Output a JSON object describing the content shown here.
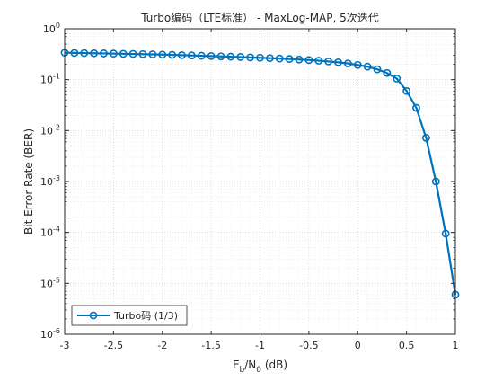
{
  "chart_data": {
    "type": "line",
    "title": "Turbo编码（LTE标准） - MaxLog-MAP, 5次迭代",
    "xlabel": {
      "base": "E",
      "sub1": "b",
      "mid": "/N",
      "sub2": "0",
      "tail": " (dB)"
    },
    "ylabel": "Bit Error Rate (BER)",
    "xscale": "linear",
    "yscale": "log",
    "xlim": [
      -3,
      1
    ],
    "ylim": [
      1e-06,
      1
    ],
    "grid": true,
    "minor_grid": true,
    "legend_location": "bottom-left",
    "x_ticks": [
      "-3",
      "-2.5",
      "-2",
      "-1.5",
      "-1",
      "-0.5",
      "0",
      "0.5",
      "1"
    ],
    "y_ticks": [
      {
        "base": "10",
        "exp": "0"
      },
      {
        "base": "10",
        "exp": "-1"
      },
      {
        "base": "10",
        "exp": "-2"
      },
      {
        "base": "10",
        "exp": "-3"
      },
      {
        "base": "10",
        "exp": "-4"
      },
      {
        "base": "10",
        "exp": "-5"
      },
      {
        "base": "10",
        "exp": "-6"
      }
    ],
    "series": [
      {
        "name": "Turbo码 (1/3)",
        "color": "#0072BD",
        "marker": "circle",
        "x": [
          -3.0,
          -2.9,
          -2.8,
          -2.7,
          -2.6,
          -2.5,
          -2.4,
          -2.3,
          -2.2,
          -2.1,
          -2.0,
          -1.9,
          -1.8,
          -1.7,
          -1.6,
          -1.5,
          -1.4,
          -1.3,
          -1.2,
          -1.1,
          -1.0,
          -0.9,
          -0.8,
          -0.7,
          -0.6,
          -0.5,
          -0.4,
          -0.3,
          -0.2,
          -0.1,
          0.0,
          0.1,
          0.2,
          0.3,
          0.4,
          0.5,
          0.6,
          0.7,
          0.8,
          0.9,
          1.0
        ],
        "y": [
          0.34,
          0.335,
          0.333,
          0.33,
          0.328,
          0.325,
          0.322,
          0.32,
          0.317,
          0.314,
          0.311,
          0.307,
          0.303,
          0.299,
          0.295,
          0.291,
          0.287,
          0.283,
          0.279,
          0.274,
          0.27,
          0.265,
          0.26,
          0.255,
          0.249,
          0.243,
          0.236,
          0.228,
          0.219,
          0.208,
          0.195,
          0.18,
          0.16,
          0.135,
          0.105,
          0.06,
          0.028,
          0.0072,
          0.001,
          9.5e-05,
          6e-06
        ]
      }
    ]
  }
}
